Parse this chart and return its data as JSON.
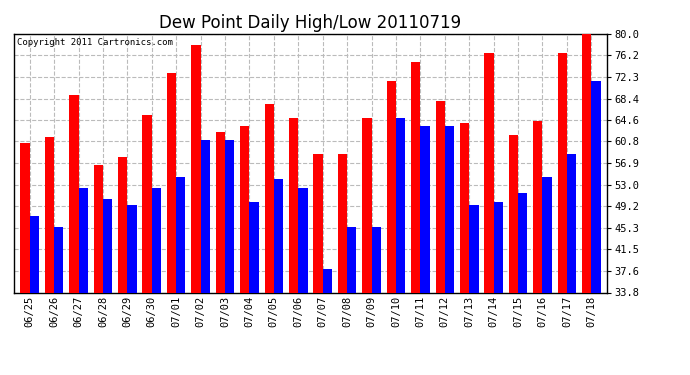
{
  "title": "Dew Point Daily High/Low 20110719",
  "copyright": "Copyright 2011 Cartronics.com",
  "dates": [
    "06/25",
    "06/26",
    "06/27",
    "06/28",
    "06/29",
    "06/30",
    "07/01",
    "07/02",
    "07/03",
    "07/04",
    "07/05",
    "07/06",
    "07/07",
    "07/08",
    "07/09",
    "07/10",
    "07/11",
    "07/12",
    "07/13",
    "07/14",
    "07/15",
    "07/16",
    "07/17",
    "07/18"
  ],
  "highs": [
    60.5,
    61.5,
    69.0,
    56.5,
    58.0,
    65.5,
    73.0,
    78.0,
    62.5,
    63.5,
    67.5,
    65.0,
    58.5,
    58.5,
    65.0,
    71.5,
    75.0,
    68.0,
    64.0,
    76.5,
    62.0,
    64.5,
    76.5,
    80.0
  ],
  "lows": [
    47.5,
    45.5,
    52.5,
    50.5,
    49.5,
    52.5,
    54.5,
    61.0,
    61.0,
    50.0,
    54.0,
    52.5,
    38.0,
    45.5,
    45.5,
    65.0,
    63.5,
    63.5,
    49.5,
    50.0,
    51.5,
    54.5,
    58.5,
    71.5
  ],
  "high_color": "#ff0000",
  "low_color": "#0000ff",
  "bg_color": "#ffffff",
  "ylim_min": 33.8,
  "ylim_max": 80.0,
  "yticks": [
    33.8,
    37.6,
    41.5,
    45.3,
    49.2,
    53.0,
    56.9,
    60.8,
    64.6,
    68.4,
    72.3,
    76.2,
    80.0
  ],
  "grid_color": "#bbbbbb",
  "bar_width": 0.38,
  "title_fontsize": 12,
  "tick_fontsize": 7.5,
  "copyright_fontsize": 6.5
}
